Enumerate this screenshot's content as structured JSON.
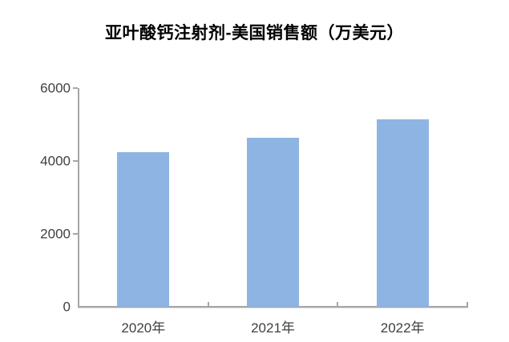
{
  "chart_data": {
    "type": "bar",
    "title": "亚叶酸钙注射剂-美国销售额（万美元）",
    "categories": [
      "2020年",
      "2021年",
      "2022年"
    ],
    "values": [
      4240,
      4640,
      5140
    ],
    "xlabel": "",
    "ylabel": "",
    "ylim": [
      0,
      6000
    ],
    "yticks": [
      0,
      2000,
      4000,
      6000
    ],
    "grid": false,
    "legend_position": "none"
  },
  "style": {
    "background": "#FFFFFF",
    "title_color": "#000000",
    "bar_color": "#8EB4E3",
    "axis_line_color": "#A6A6A6",
    "tick_label_color": "#404040"
  }
}
